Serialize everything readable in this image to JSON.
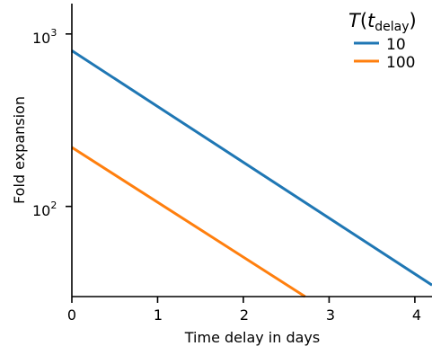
{
  "chart_data": {
    "type": "line",
    "title": "",
    "xlabel": "Time delay in days",
    "ylabel": "Fold expansion",
    "xlim": [
      0,
      4.2
    ],
    "ylim": [
      30,
      1500
    ],
    "yscale": "log",
    "grid": false,
    "x_ticks": [
      0,
      1,
      2,
      3,
      4
    ],
    "x_tick_labels": [
      "0",
      "1",
      "2",
      "3",
      "4"
    ],
    "y_ticks": [
      100,
      1000
    ],
    "y_tick_base": "10",
    "y_tick_exponents": [
      "2",
      "3"
    ],
    "legend": {
      "placement": "top-right",
      "title_main": "T",
      "title_open": "(",
      "title_var": "t",
      "title_sub": "delay",
      "title_close": ")"
    },
    "series": [
      {
        "name": "10",
        "color": "#1f77b4",
        "x": [
          0,
          4.2
        ],
        "y": [
          800,
          35
        ]
      },
      {
        "name": "100",
        "color": "#ff7f0e",
        "x": [
          0,
          2.72
        ],
        "y": [
          220,
          30
        ]
      }
    ]
  }
}
